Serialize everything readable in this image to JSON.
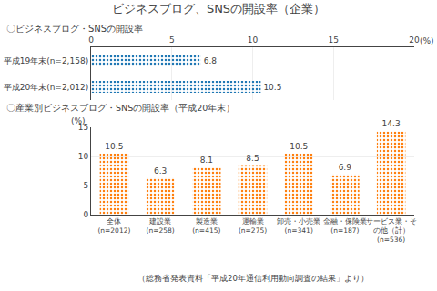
{
  "chart_data": [
    {
      "type": "bar",
      "title": "ビジネスブログ、SNSの開設率（企業）",
      "subtitle": "〇ビジネスブログ・SNSの開設率",
      "orientation": "horizontal",
      "categories": [
        "平成19年末(n=2,158)",
        "平成20年末(n=2,012)"
      ],
      "values": [
        6.8,
        10.5
      ],
      "xlabel": "(%)",
      "xlim": [
        0,
        20
      ],
      "xticks": [
        0,
        5,
        10,
        15,
        20
      ],
      "grid": true,
      "data_labels": true
    },
    {
      "type": "bar",
      "title": "〇産業別ビジネスブログ・SNSの開設率（平成20年末）",
      "categories": [
        "全体\n(n=2012)",
        "建設業\n(n=258)",
        "製造業\n(n=415)",
        "運輸業\n(n=275)",
        "卸売・小売業\n(n=341)",
        "金融・保険業\n(n=187)",
        "サービス業・そ\nの他（計）\n(n=536)"
      ],
      "values": [
        10.5,
        6.3,
        8.1,
        8.5,
        10.5,
        6.9,
        14.3
      ],
      "ylabel": "(%)",
      "ylim": [
        0,
        15
      ],
      "yticks": [
        0,
        5,
        10,
        15
      ],
      "grid": true,
      "data_labels": true,
      "annotations": [
        "（総務省発表資料「平成20年通信利用動向調査の結果」より）"
      ]
    }
  ]
}
